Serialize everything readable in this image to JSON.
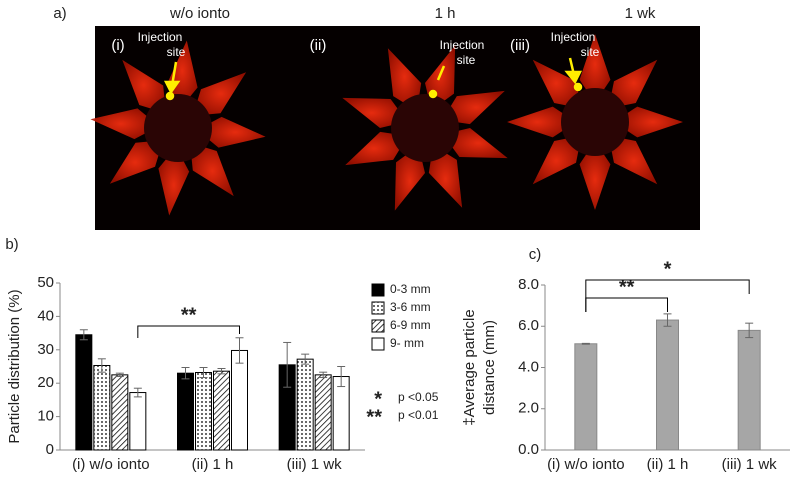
{
  "panel_a": {
    "label": "a)",
    "columns": [
      "w/o ionto",
      "1 h",
      "1 wk"
    ],
    "tags": [
      "(i)",
      "(ii)",
      "(iii)"
    ],
    "annotation": [
      "Injection",
      "site"
    ]
  },
  "chart_data": [
    {
      "type": "grouped_bar",
      "label": "b)",
      "ylabel": "Particle distribution (%)",
      "categories": [
        "(i) w/o ionto",
        "(ii) 1 h",
        "(iii) 1 wk"
      ],
      "series": [
        {
          "name": "0-3 mm",
          "color": "#000000",
          "values": [
            34.5,
            23,
            25.5
          ],
          "errors": [
            1.5,
            1.7,
            6.7
          ]
        },
        {
          "name": "3-6 mm",
          "color": "#ffffff",
          "pattern": "dots",
          "values": [
            25.3,
            23.2,
            27.2
          ],
          "errors": [
            2,
            1.5,
            1.5
          ]
        },
        {
          "name": "6-9 mm",
          "color": "#ffffff",
          "pattern": "hatch",
          "values": [
            22.5,
            23.6,
            22.5
          ],
          "errors": [
            0.5,
            0.8,
            0.8
          ]
        },
        {
          "name": "9-   mm",
          "color": "#ffffff",
          "values": [
            17.2,
            29.8,
            22
          ],
          "errors": [
            1.3,
            3.8,
            3
          ]
        }
      ],
      "ylim": [
        0,
        50
      ],
      "yticks": [
        0,
        10,
        20,
        30,
        40,
        50
      ],
      "brackets": [
        {
          "label": "**",
          "between": [
            "(i) w/o ionto",
            "(ii) 1 h"
          ]
        }
      ],
      "significance": [
        {
          "symbol": "*",
          "text": "p <0.05"
        },
        {
          "symbol": "**",
          "text": "p <0.01"
        }
      ]
    },
    {
      "type": "bar",
      "label": "c)",
      "ylabel": [
        "‡Average particle",
        "distance (mm)"
      ],
      "categories": [
        "(i) w/o ionto",
        "(ii) 1 h",
        "(iii) 1 wk"
      ],
      "values": [
        5.15,
        6.3,
        5.8
      ],
      "errors": [
        0.02,
        0.3,
        0.35
      ],
      "color": "#a6a6a6",
      "ylim": [
        0,
        8
      ],
      "yticks": [
        {
          "value": 0,
          "label": "0.0"
        },
        {
          "value": 2,
          "label": "2.0"
        },
        {
          "value": 4,
          "label": "4.0"
        },
        {
          "value": 6,
          "label": "6.0"
        },
        {
          "value": 8,
          "label": "8.0"
        }
      ],
      "brackets": [
        {
          "label": "**",
          "between": [
            "(i) w/o ionto",
            "(ii) 1 h"
          ]
        },
        {
          "label": "*",
          "between": [
            "(i) w/o ionto",
            "(iii) 1 wk"
          ]
        }
      ]
    }
  ]
}
